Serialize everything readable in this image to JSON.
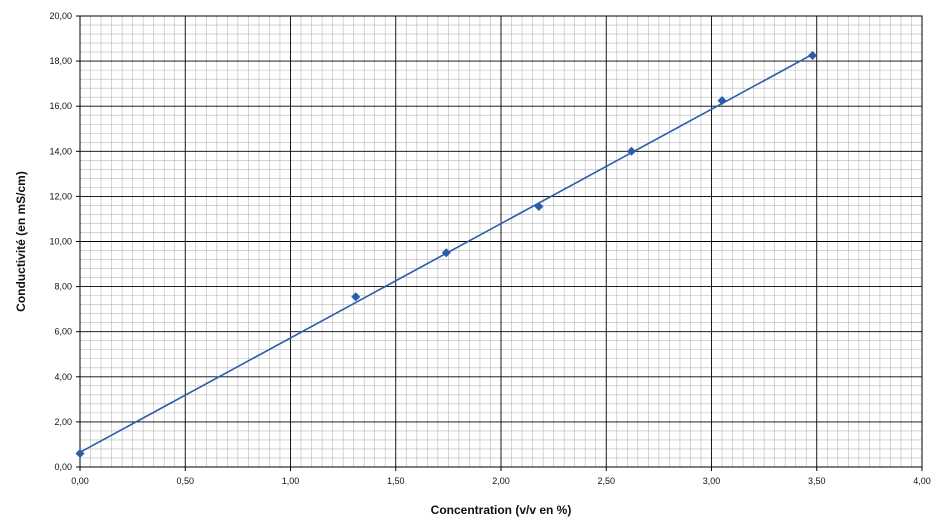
{
  "chart_data": {
    "type": "scatter",
    "title": "",
    "xlabel": "Concentration (v/v en %)",
    "ylabel": "Conductivité  (en  mS/cm)",
    "xlim": [
      0,
      4
    ],
    "ylim": [
      0,
      20
    ],
    "x_ticks": [
      "0,00",
      "0,50",
      "1,00",
      "1,50",
      "2,00",
      "2,50",
      "3,00",
      "3,50",
      "4,00"
    ],
    "y_ticks": [
      "0,00",
      "2,00",
      "4,00",
      "6,00",
      "8,00",
      "10,00",
      "12,00",
      "14,00",
      "16,00",
      "18,00",
      "20,00"
    ],
    "grid": true,
    "legend": "none",
    "series": [
      {
        "x": [
          0.0,
          1.31,
          1.74,
          2.18,
          2.62,
          3.05,
          3.48
        ],
        "y": [
          0.6,
          7.55,
          9.5,
          11.55,
          14.0,
          16.25,
          18.25
        ],
        "marker": "diamond",
        "color": "#2a5caa"
      }
    ],
    "trendline": {
      "type": "linear",
      "x": [
        0.0,
        3.48
      ],
      "y": [
        0.65,
        18.3
      ],
      "color": "#2a5caa"
    }
  }
}
